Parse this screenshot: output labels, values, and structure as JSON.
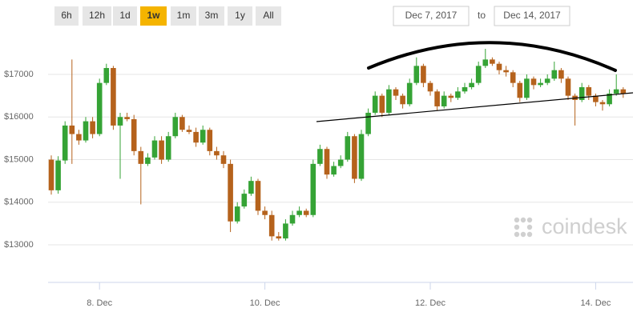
{
  "range_buttons": [
    "6h",
    "12h",
    "1d",
    "1w",
    "1m",
    "3m",
    "1y",
    "All"
  ],
  "selected_range": "1w",
  "date_from": "Dec 7, 2017",
  "date_separator": "to",
  "date_to": "Dec 14, 2017",
  "watermark": "coindesk",
  "chart_data": {
    "type": "candlestick",
    "up_color": "#35a335",
    "down_color": "#b5621c",
    "grid": true,
    "categories": [
      null,
      null,
      null,
      null,
      null,
      null,
      null,
      "8. Dec",
      null,
      null,
      null,
      null,
      null,
      null,
      null,
      null,
      null,
      null,
      null,
      null,
      null,
      null,
      null,
      null,
      null,
      null,
      null,
      null,
      null,
      null,
      null,
      "10. Dec",
      null,
      null,
      null,
      null,
      null,
      null,
      null,
      null,
      null,
      null,
      null,
      null,
      null,
      null,
      null,
      null,
      null,
      null,
      null,
      null,
      null,
      null,
      null,
      "12. Dec",
      null,
      null,
      null,
      null,
      null,
      null,
      null,
      null,
      null,
      null,
      null,
      null,
      null,
      null,
      null,
      null,
      null,
      null,
      null,
      null,
      null,
      null,
      null,
      "14. Dec",
      null,
      null,
      null,
      null
    ],
    "open": [
      15000,
      14280,
      14980,
      15800,
      15600,
      15450,
      15900,
      15600,
      16800,
      17150,
      15800,
      16000,
      15950,
      15200,
      14900,
      15050,
      15450,
      15000,
      15550,
      16000,
      15700,
      15650,
      15400,
      15700,
      15200,
      15100,
      14900,
      13550,
      13900,
      14200,
      14500,
      13800,
      13700,
      13200,
      13150,
      13500,
      13700,
      13800,
      13700,
      14900,
      15250,
      14650,
      14850,
      15000,
      15550,
      14550,
      15600,
      16100,
      16500,
      16100,
      16650,
      16500,
      16300,
      16800,
      17200,
      16800,
      16600,
      16250,
      16500,
      16450,
      16600,
      16700,
      16800,
      17200,
      17350,
      17250,
      17100,
      17050,
      16800,
      16450,
      16900,
      16750,
      16800,
      16900,
      17100,
      16900,
      16500,
      16400,
      16700,
      16500,
      16350,
      16300,
      16550,
      16650
    ],
    "high": [
      15100,
      15080,
      15900,
      17350,
      15700,
      16000,
      16000,
      16900,
      17250,
      17200,
      16100,
      16100,
      16050,
      15300,
      15150,
      15550,
      15550,
      15650,
      16100,
      16050,
      15800,
      15750,
      15800,
      15750,
      15300,
      15200,
      15000,
      14000,
      14300,
      14600,
      14550,
      13900,
      13800,
      13300,
      13600,
      13800,
      13900,
      13850,
      15000,
      15350,
      15300,
      14950,
      15100,
      15650,
      15600,
      15700,
      16200,
      16600,
      16550,
      16750,
      16700,
      16550,
      16900,
      17400,
      17250,
      16850,
      16650,
      16600,
      16550,
      16700,
      16800,
      16900,
      17300,
      17600,
      17400,
      17300,
      17200,
      17100,
      16850,
      17000,
      16950,
      16900,
      17000,
      17300,
      17150,
      16950,
      16550,
      16800,
      16750,
      16550,
      16400,
      16650,
      17000,
      16700
    ],
    "low": [
      14180,
      14200,
      14900,
      14900,
      15350,
      15400,
      15500,
      15550,
      16750,
      15700,
      14550,
      15900,
      15100,
      13950,
      14850,
      15000,
      14900,
      14950,
      15500,
      15650,
      15600,
      15300,
      15350,
      15100,
      15000,
      14800,
      13300,
      13500,
      13850,
      14150,
      13700,
      13600,
      13100,
      13100,
      13100,
      13450,
      13650,
      13650,
      13650,
      14850,
      14550,
      14600,
      14800,
      14950,
      14450,
      14500,
      15550,
      16050,
      16000,
      16050,
      16400,
      16200,
      16250,
      16750,
      16700,
      16500,
      16150,
      16200,
      16350,
      16400,
      16550,
      16650,
      16750,
      17150,
      17200,
      17000,
      16950,
      16700,
      16350,
      16400,
      16650,
      16700,
      16750,
      16850,
      16800,
      16400,
      15800,
      16350,
      16400,
      16250,
      16150,
      16250,
      16500,
      16450
    ],
    "close": [
      14280,
      14980,
      15800,
      15600,
      15450,
      15900,
      15600,
      16800,
      17150,
      15800,
      16000,
      15950,
      15200,
      14900,
      15050,
      15450,
      15000,
      15550,
      16000,
      15700,
      15650,
      15400,
      15700,
      15200,
      15100,
      14900,
      13550,
      13900,
      14200,
      14500,
      13800,
      13700,
      13200,
      13150,
      13500,
      13700,
      13800,
      13700,
      14900,
      15250,
      14650,
      14850,
      15000,
      15550,
      14550,
      15600,
      16100,
      16500,
      16100,
      16650,
      16500,
      16300,
      16800,
      17200,
      16800,
      16600,
      16250,
      16500,
      16450,
      16600,
      16700,
      16800,
      17200,
      17350,
      17250,
      17100,
      17050,
      16800,
      16450,
      16900,
      16750,
      16800,
      16900,
      17100,
      16900,
      16500,
      16400,
      16700,
      16500,
      16350,
      16300,
      16550,
      16650,
      16550
    ],
    "ylim": [
      12400,
      18000
    ],
    "yticks": [
      {
        "value": 13000,
        "label": "$13000"
      },
      {
        "value": 14000,
        "label": "$14000"
      },
      {
        "value": 15000,
        "label": "$15000"
      },
      {
        "value": 16000,
        "label": "$16000"
      },
      {
        "value": 17000,
        "label": "$17000"
      }
    ]
  }
}
